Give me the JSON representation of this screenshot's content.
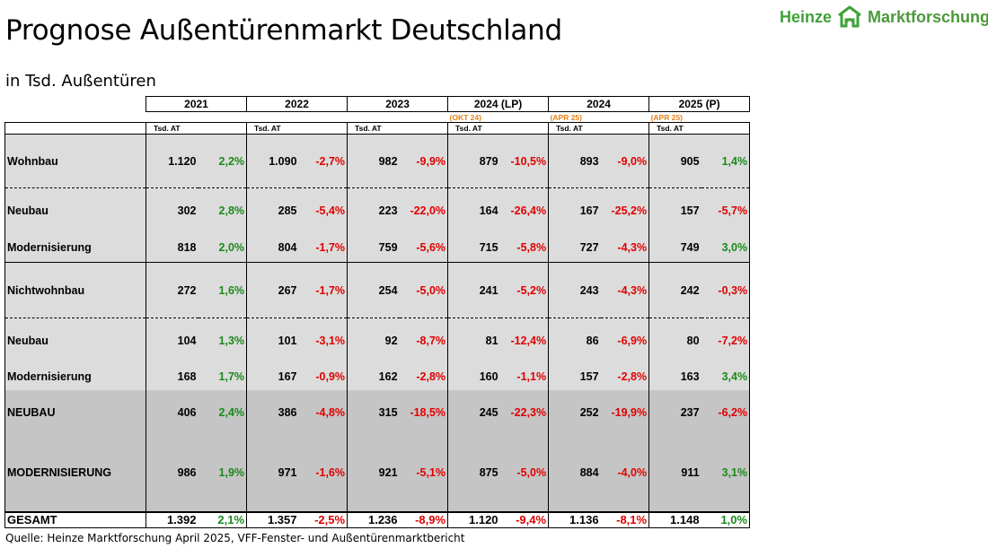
{
  "title": "Prognose Außentürenmarkt Deutschland",
  "subtitle": "in Tsd. Außentüren",
  "logo": {
    "brand_left": "Heinze",
    "brand_right": "Marktforschung",
    "icon": "heinze-logo-icon"
  },
  "columns": [
    {
      "year": "2021",
      "note": "",
      "unit": "Tsd. AT"
    },
    {
      "year": "2022",
      "note": "",
      "unit": "Tsd. AT"
    },
    {
      "year": "2023",
      "note": "",
      "unit": "Tsd. AT"
    },
    {
      "year": "2024 (LP)",
      "note": "(OKT 24)",
      "unit": "Tsd. AT"
    },
    {
      "year": "2024",
      "note": "(APR 25)",
      "unit": "Tsd. AT"
    },
    {
      "year": "2025 (P)",
      "note": "(APR 25)",
      "unit": "Tsd. AT"
    }
  ],
  "rows": {
    "wohnbau": {
      "label": "Wohnbau",
      "cells": [
        [
          "1.120",
          "2,2%"
        ],
        [
          "1.090",
          "-2,7%"
        ],
        [
          "982",
          "-9,9%"
        ],
        [
          "879",
          "-10,5%"
        ],
        [
          "893",
          "-9,0%"
        ],
        [
          "905",
          "1,4%"
        ]
      ]
    },
    "wohnbau_neubau": {
      "label": "Neubau",
      "cells": [
        [
          "302",
          "2,8%"
        ],
        [
          "285",
          "-5,4%"
        ],
        [
          "223",
          "-22,0%"
        ],
        [
          "164",
          "-26,4%"
        ],
        [
          "167",
          "-25,2%"
        ],
        [
          "157",
          "-5,7%"
        ]
      ]
    },
    "wohnbau_modern": {
      "label": "Modernisierung",
      "cells": [
        [
          "818",
          "2,0%"
        ],
        [
          "804",
          "-1,7%"
        ],
        [
          "759",
          "-5,6%"
        ],
        [
          "715",
          "-5,8%"
        ],
        [
          "727",
          "-4,3%"
        ],
        [
          "749",
          "3,0%"
        ]
      ]
    },
    "nichtwohnbau": {
      "label": "Nichtwohnbau",
      "cells": [
        [
          "272",
          "1,6%"
        ],
        [
          "267",
          "-1,7%"
        ],
        [
          "254",
          "-5,0%"
        ],
        [
          "241",
          "-5,2%"
        ],
        [
          "243",
          "-4,3%"
        ],
        [
          "242",
          "-0,3%"
        ]
      ]
    },
    "nwb_neubau": {
      "label": "Neubau",
      "cells": [
        [
          "104",
          "1,3%"
        ],
        [
          "101",
          "-3,1%"
        ],
        [
          "92",
          "-8,7%"
        ],
        [
          "81",
          "-12,4%"
        ],
        [
          "86",
          "-6,9%"
        ],
        [
          "80",
          "-7,2%"
        ]
      ]
    },
    "nwb_modern": {
      "label": "Modernisierung",
      "cells": [
        [
          "168",
          "1,7%"
        ],
        [
          "167",
          "-0,9%"
        ],
        [
          "162",
          "-2,8%"
        ],
        [
          "160",
          "-1,1%"
        ],
        [
          "157",
          "-2,8%"
        ],
        [
          "163",
          "3,4%"
        ]
      ]
    },
    "neubau": {
      "label": "NEUBAU",
      "cells": [
        [
          "406",
          "2,4%"
        ],
        [
          "386",
          "-4,8%"
        ],
        [
          "315",
          "-18,5%"
        ],
        [
          "245",
          "-22,3%"
        ],
        [
          "252",
          "-19,9%"
        ],
        [
          "237",
          "-6,2%"
        ]
      ]
    },
    "modern": {
      "label": "MODERNISIERUNG",
      "cells": [
        [
          "986",
          "1,9%"
        ],
        [
          "971",
          "-1,6%"
        ],
        [
          "921",
          "-5,1%"
        ],
        [
          "875",
          "-5,0%"
        ],
        [
          "884",
          "-4,0%"
        ],
        [
          "911",
          "3,1%"
        ]
      ]
    },
    "gesamt": {
      "label": "GESAMT",
      "cells": [
        [
          "1.392",
          "2,1%"
        ],
        [
          "1.357",
          "-2,5%"
        ],
        [
          "1.236",
          "-8,9%"
        ],
        [
          "1.120",
          "-9,4%"
        ],
        [
          "1.136",
          "-8,1%"
        ],
        [
          "1.148",
          "1,0%"
        ]
      ]
    }
  },
  "colors": {
    "positive": "#1a8a1a",
    "negative": "#e00000",
    "note": "#e8811a",
    "light_gray": "#dcdcdc",
    "dark_gray": "#c5c5c5",
    "logo_green": "#3fa13a"
  },
  "source": "Quelle: Heinze Marktforschung April 2025, VFF-Fenster- und Außentürenmarktbericht"
}
